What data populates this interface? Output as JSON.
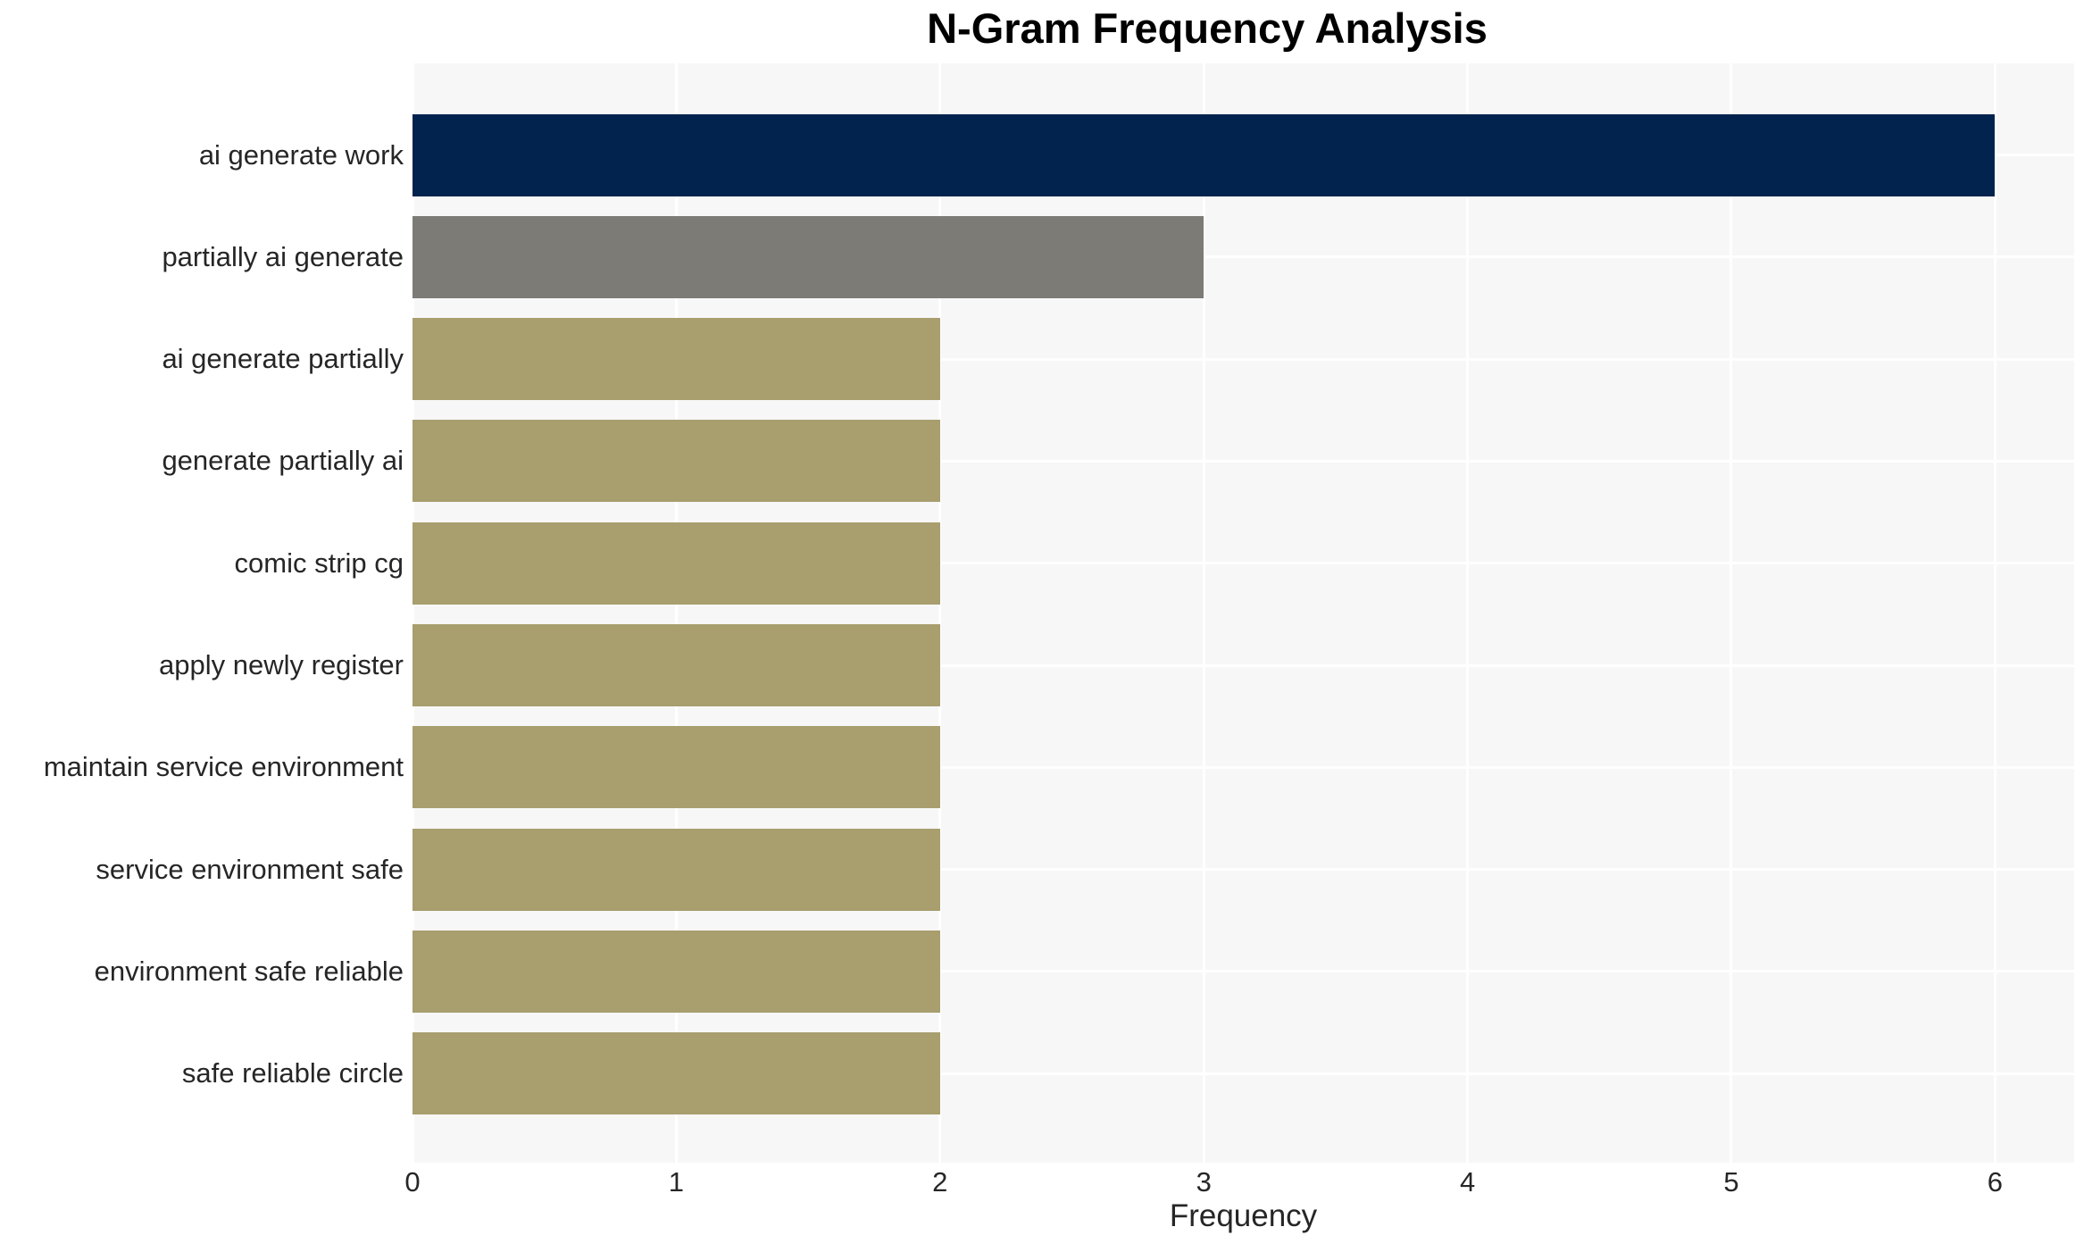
{
  "chart_data": {
    "type": "bar",
    "orientation": "horizontal",
    "title": "N-Gram Frequency Analysis",
    "xlabel": "Frequency",
    "ylabel": "",
    "categories": [
      "ai generate work",
      "partially ai generate",
      "ai generate partially",
      "generate partially ai",
      "comic strip cg",
      "apply newly register",
      "maintain service environment",
      "service environment safe",
      "environment safe reliable",
      "safe reliable circle"
    ],
    "values": [
      6,
      3,
      2,
      2,
      2,
      2,
      2,
      2,
      2,
      2
    ],
    "bar_colors": [
      "#02234d",
      "#7c7b76",
      "#a89e6e",
      "#a89e6e",
      "#a89e6e",
      "#a89e6e",
      "#a89e6e",
      "#a89e6e",
      "#a89e6e",
      "#a89e6e"
    ],
    "xticks": [
      0,
      1,
      2,
      3,
      4,
      5,
      6
    ],
    "xlim": [
      0,
      6.3
    ],
    "grid": true,
    "legend": false,
    "colors": {
      "plot_background": "#f7f7f7",
      "figure_background": "#ffffff",
      "gridline": "#ffffff",
      "tick_text": "#262626",
      "title_text": "#000000"
    }
  }
}
